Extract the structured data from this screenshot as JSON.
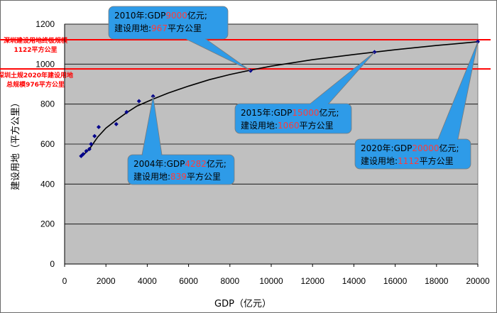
{
  "chart_data": {
    "type": "scatter",
    "xlabel": "GDP（亿元）",
    "ylabel": "建设用地（平方公里）",
    "xlim": [
      0,
      20000
    ],
    "ylim": [
      0,
      1200
    ],
    "xticks": [
      "0",
      "2000",
      "4000",
      "6000",
      "8000",
      "10000",
      "12000",
      "14000",
      "16000",
      "18000",
      "20000"
    ],
    "yticks": [
      "0",
      "200",
      "400",
      "600",
      "800",
      "1000",
      "1200"
    ],
    "grid": true,
    "points": [
      {
        "x": 800,
        "y": 540
      },
      {
        "x": 900,
        "y": 550
      },
      {
        "x": 1050,
        "y": 565
      },
      {
        "x": 1200,
        "y": 575
      },
      {
        "x": 1280,
        "y": 600
      },
      {
        "x": 1450,
        "y": 640
      },
      {
        "x": 1650,
        "y": 685
      },
      {
        "x": 2500,
        "y": 700
      },
      {
        "x": 3000,
        "y": 760
      },
      {
        "x": 3600,
        "y": 815
      },
      {
        "x": 4282,
        "y": 839
      },
      {
        "x": 9000,
        "y": 967
      },
      {
        "x": 15000,
        "y": 1060
      },
      {
        "x": 20000,
        "y": 1112
      }
    ],
    "trend": [
      {
        "x": 800,
        "y": 535
      },
      {
        "x": 1200,
        "y": 575
      },
      {
        "x": 1600,
        "y": 635
      },
      {
        "x": 2000,
        "y": 680
      },
      {
        "x": 2500,
        "y": 720
      },
      {
        "x": 3000,
        "y": 757
      },
      {
        "x": 3500,
        "y": 790
      },
      {
        "x": 4282,
        "y": 825
      },
      {
        "x": 5000,
        "y": 855
      },
      {
        "x": 6000,
        "y": 890
      },
      {
        "x": 7000,
        "y": 922
      },
      {
        "x": 8000,
        "y": 948
      },
      {
        "x": 9000,
        "y": 970
      },
      {
        "x": 10000,
        "y": 990
      },
      {
        "x": 12000,
        "y": 1022
      },
      {
        "x": 14000,
        "y": 1048
      },
      {
        "x": 15000,
        "y": 1060
      },
      {
        "x": 16000,
        "y": 1072
      },
      {
        "x": 18000,
        "y": 1093
      },
      {
        "x": 20000,
        "y": 1112
      }
    ],
    "ref_lines": [
      {
        "y": 1122,
        "label_lines": [
          "深圳建设用地终极规模",
          "1122平方公里"
        ],
        "color": "#ff0000"
      },
      {
        "y": 976,
        "label_lines": [
          "深圳土规2020年建设用地",
          "总规模976平方公里"
        ],
        "color": "#ff0000"
      }
    ],
    "callouts": [
      {
        "year": "2010年:GDP",
        "gdp": "9000",
        "gdp_unit": "亿元;",
        "land_label": "建设用地:",
        "land": "967",
        "land_unit": "平方公里",
        "target": {
          "x": 9000,
          "y": 967
        }
      },
      {
        "year": "2015年:GDP",
        "gdp": "15000",
        "gdp_unit": "亿元;",
        "land_label": "建设用地:",
        "land": "1060",
        "land_unit": "平方公里",
        "target": {
          "x": 15000,
          "y": 1060
        }
      },
      {
        "year": "2004年:GDP",
        "gdp": "4282",
        "gdp_unit": "亿元;",
        "land_label": "建设用地:",
        "land": "839",
        "land_unit": "平方公里",
        "target": {
          "x": 4282,
          "y": 839
        }
      },
      {
        "year": "2020年:GDP",
        "gdp": "20000",
        "gdp_unit": "亿元;",
        "land_label": "建设用地:",
        "land": "1112",
        "land_unit": "平方公里",
        "target": {
          "x": 20000,
          "y": 1112
        }
      }
    ],
    "colors": {
      "plot_bg": "#c0c0c0",
      "grid": "#000000",
      "point": "#00008b",
      "curve": "#000000",
      "callout": "#2e9be8",
      "callout_edge": "#7a7a7a",
      "ref": "#ff0000",
      "highlight": "#ff3b3b"
    }
  }
}
